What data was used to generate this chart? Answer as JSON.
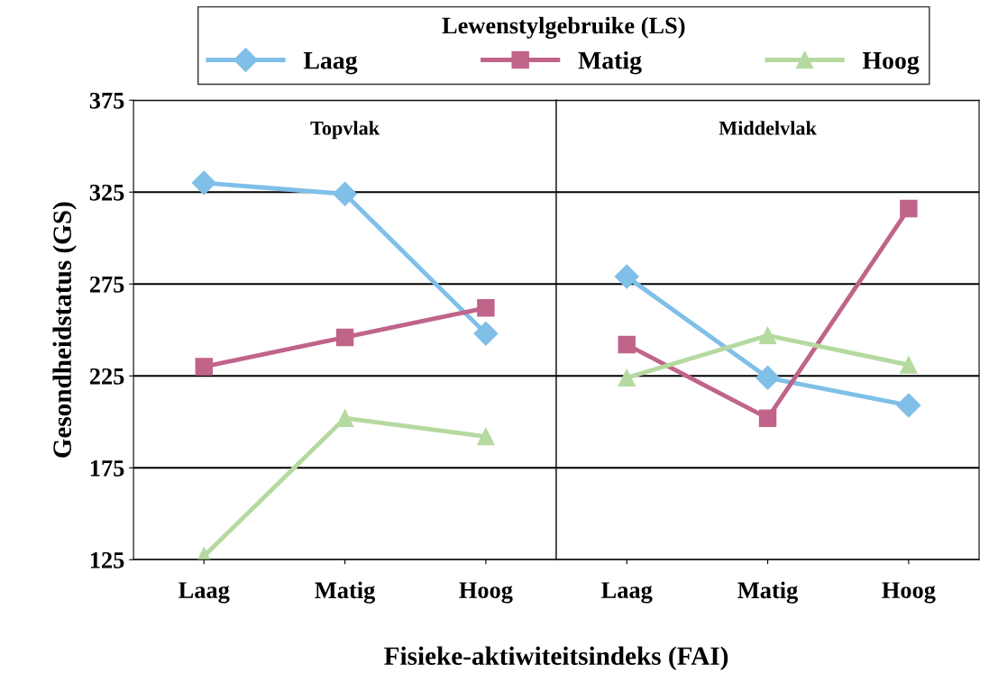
{
  "chart_data": [
    {
      "type": "line",
      "title": "Topvlak",
      "xlabel": "Fisieke-aktiwiteitsindeks (FAI)",
      "ylabel": "Gesondheidstatus (GS)",
      "legend_title": "Lewenstylgebruike (LS)",
      "legend": "top",
      "grid": "y",
      "categories": [
        "Laag",
        "Matig",
        "Hoog"
      ],
      "ylim": [
        125,
        375
      ],
      "yticks": [
        125,
        175,
        225,
        275,
        325,
        375
      ],
      "series": [
        {
          "name": "Laag",
          "color": "#7fbfe8",
          "marker": "diamond",
          "values": [
            330,
            324,
            248
          ]
        },
        {
          "name": "Matig",
          "color": "#c0648a",
          "marker": "square",
          "values": [
            230,
            246,
            262
          ]
        },
        {
          "name": "Hoog",
          "color": "#b5d9a0",
          "marker": "triangle",
          "values": [
            127,
            202,
            192
          ]
        }
      ]
    },
    {
      "type": "line",
      "title": "Middelvlak",
      "grid": "y",
      "tick_labels": "x",
      "categories": [
        "Laag",
        "Matig",
        "Hoog"
      ],
      "ylim": [
        125,
        375
      ],
      "yticks": [
        125,
        175,
        225,
        275,
        325,
        375
      ],
      "series": [
        {
          "color": "#7fbfe8",
          "marker": "diamond",
          "values": [
            279,
            224,
            209
          ]
        },
        {
          "color": "#c0648a",
          "marker": "square",
          "values": [
            242,
            202,
            316
          ]
        },
        {
          "color": "#b5d9a0",
          "marker": "triangle",
          "values": [
            224,
            247,
            231
          ]
        }
      ]
    }
  ]
}
